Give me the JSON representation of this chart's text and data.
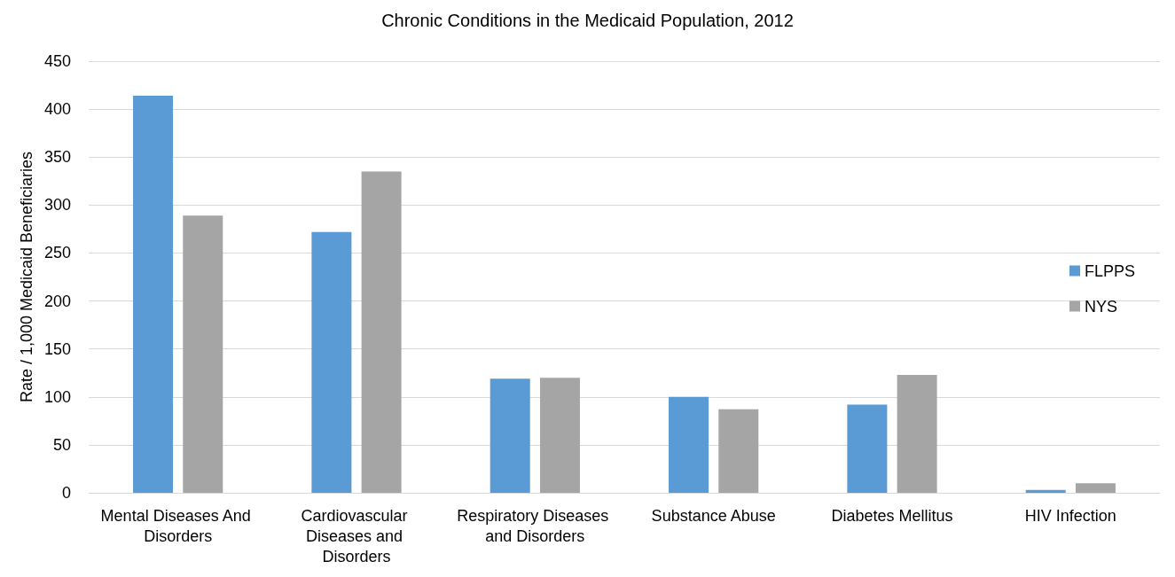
{
  "chart_data": {
    "type": "bar",
    "title": "Chronic Conditions in the Medicaid Population, 2012",
    "ylabel": "Rate / 1,000 Medicaid Beneficiaries",
    "categories": [
      "Mental Diseases And Disorders",
      "Cardiovascular Diseases and Disorders",
      "Respiratory Diseases and Disorders",
      "Substance Abuse",
      "Diabetes Mellitus",
      "HIV Infection"
    ],
    "series": [
      {
        "name": "FLPPS",
        "color": "#5b9bd5",
        "values": [
          414,
          272,
          119,
          100,
          92,
          3
        ]
      },
      {
        "name": "NYS",
        "color": "#a5a5a5",
        "values": [
          289,
          335,
          120,
          87,
          123,
          10
        ]
      }
    ],
    "ylim": [
      0,
      450
    ],
    "yticks": [
      0,
      50,
      100,
      150,
      200,
      250,
      300,
      350,
      400,
      450
    ],
    "grid": "y",
    "legend": "right"
  }
}
